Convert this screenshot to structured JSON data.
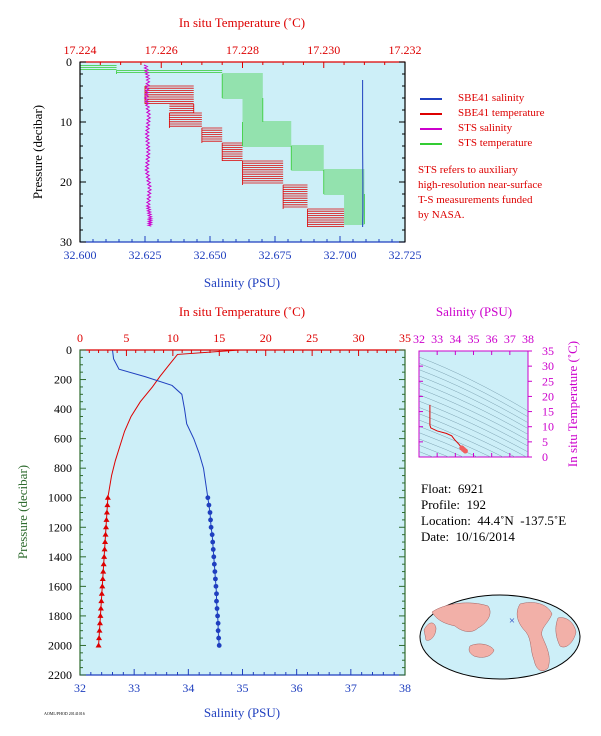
{
  "chart_data": [
    {
      "id": "near_surface",
      "type": "line",
      "xlabel_bottom": "Salinity (PSU)",
      "xlabel_top": "In situ Temperature (˚C)",
      "ylabel": "Pressure (decibar)",
      "x_bottom_range": [
        32.6,
        32.725
      ],
      "x_bottom_ticks": [
        "32.600",
        "32.625",
        "32.650",
        "32.675",
        "32.700",
        "32.725"
      ],
      "x_top_range": [
        17.224,
        17.232
      ],
      "x_top_ticks": [
        "17.224",
        "17.226",
        "17.228",
        "17.230",
        "17.232"
      ],
      "y_range": [
        0,
        30
      ],
      "y_ticks": [
        "0",
        "10",
        "20",
        "30"
      ],
      "legend": [
        {
          "label": "SBE41 salinity",
          "color": "#1f3fbf"
        },
        {
          "label": "SBE41 temperature",
          "color": "#dd0000"
        },
        {
          "label": "STS salinity",
          "color": "#cc00cc"
        },
        {
          "label": "STS temperature",
          "color": "#33cc33"
        }
      ],
      "sbe41_salinity": {
        "x": [
          32.7087,
          32.7087,
          32.7087,
          32.7088,
          32.7088,
          32.7087
        ],
        "y": [
          3,
          8,
          14,
          20,
          25,
          27.5
        ]
      },
      "sts_salinity": {
        "x": [
          32.6252,
          32.6262,
          32.6255,
          32.6265,
          32.6258,
          32.6263,
          32.6257,
          32.6268,
          32.6262,
          32.627,
          32.6268
        ],
        "y": [
          0.5,
          3,
          6,
          9,
          12,
          15,
          18,
          21,
          24,
          26,
          27.5
        ]
      },
      "sbe41_temperature": {
        "x": [
          17.2256,
          17.2268,
          17.2262,
          17.227,
          17.2275,
          17.228,
          17.229,
          17.2296,
          17.2305
        ],
        "y": [
          4,
          7,
          8.5,
          11,
          13.5,
          16.5,
          20.5,
          24.5,
          27.5
        ]
      },
      "sts_temperature": {
        "x": [
          17.224,
          17.2249,
          17.2275,
          17.2285,
          17.228,
          17.2292,
          17.23,
          17.231,
          17.2305
        ],
        "y": [
          0.6,
          1.4,
          2,
          6,
          10,
          14,
          18,
          22,
          27
        ]
      },
      "note": [
        "STS refers to auxiliary",
        "high-resolution near-surface",
        "T-S measurements funded",
        "by NASA."
      ]
    },
    {
      "id": "full_profile",
      "type": "line",
      "xlabel_bottom": "Salinity (PSU)",
      "xlabel_top": "In situ Temperature (˚C)",
      "ylabel": "Pressure (decibar)",
      "x_bottom_range": [
        32,
        38
      ],
      "x_bottom_ticks": [
        "32",
        "33",
        "34",
        "35",
        "36",
        "37",
        "38"
      ],
      "x_top_range": [
        0,
        35
      ],
      "x_top_ticks": [
        "0",
        "5",
        "10",
        "15",
        "20",
        "25",
        "30",
        "35"
      ],
      "y_range": [
        0,
        2200
      ],
      "y_ticks": [
        "0",
        "200",
        "400",
        "600",
        "800",
        "1000",
        "1200",
        "1400",
        "1600",
        "1800",
        "2000",
        "2200"
      ],
      "salinity": {
        "x": [
          32.6,
          32.62,
          32.72,
          33.2,
          33.7,
          33.88,
          33.93,
          33.97,
          34.1,
          34.2,
          34.28,
          34.36
        ],
        "y": [
          0,
          60,
          130,
          180,
          240,
          300,
          400,
          500,
          600,
          700,
          800,
          1000
        ]
      },
      "temperature": {
        "x": [
          17.2,
          10.5,
          9.6,
          8.6,
          7.8,
          6.5,
          5.5,
          4.8,
          4.3,
          3.8,
          3.4,
          3.0
        ],
        "y": [
          0,
          30,
          100,
          180,
          250,
          350,
          450,
          550,
          650,
          750,
          850,
          1000
        ]
      },
      "salinity_points": {
        "x": [
          34.36,
          34.38,
          34.4,
          34.41,
          34.42,
          34.44,
          34.45,
          34.46,
          34.47,
          34.48,
          34.49,
          34.5,
          34.51,
          34.52,
          34.52,
          34.53,
          34.54,
          34.55,
          34.55,
          34.56,
          34.57
        ],
        "y": [
          1000,
          1050,
          1100,
          1150,
          1200,
          1250,
          1300,
          1350,
          1400,
          1450,
          1500,
          1550,
          1600,
          1650,
          1700,
          1750,
          1800,
          1850,
          1900,
          1950,
          2000
        ]
      },
      "temperature_points": {
        "x": [
          3.0,
          2.95,
          2.9,
          2.85,
          2.8,
          2.75,
          2.7,
          2.65,
          2.6,
          2.55,
          2.5,
          2.45,
          2.4,
          2.35,
          2.3,
          2.25,
          2.2,
          2.15,
          2.1,
          2.05,
          2.0
        ],
        "y": [
          1000,
          1050,
          1100,
          1150,
          1200,
          1250,
          1300,
          1350,
          1400,
          1450,
          1500,
          1550,
          1600,
          1650,
          1700,
          1750,
          1800,
          1850,
          1900,
          1950,
          2000
        ]
      }
    },
    {
      "id": "ts_diagram",
      "type": "scatter",
      "xlabel": "Salinity (PSU)",
      "ylabel": "In situ Temperature (˚C)",
      "x_range": [
        32,
        38
      ],
      "x_ticks": [
        "32",
        "33",
        "34",
        "35",
        "36",
        "37",
        "38"
      ],
      "y_range": [
        0,
        35
      ],
      "y_ticks": [
        "0",
        "5",
        "10",
        "15",
        "20",
        "25",
        "30",
        "35"
      ],
      "ts_curve": {
        "x": [
          32.6,
          32.6,
          32.65,
          33.0,
          33.5,
          33.8,
          33.95,
          34.2,
          34.36,
          34.45,
          34.55
        ],
        "y": [
          17.2,
          10.5,
          9.6,
          8.6,
          7.8,
          7.0,
          5.8,
          4.2,
          3.0,
          2.5,
          2.0
        ]
      }
    }
  ],
  "float_info": {
    "float": "Float:  6921",
    "profile": "Profile:  192",
    "location": "Location:  44.4˚N  -137.5˚E",
    "date": "Date:  10/16/2014"
  },
  "map": {
    "marker": "×",
    "marker_color": "#1f3fbf"
  },
  "footer_text": "AOML/PHOD 20141016",
  "colors": {
    "plot_bg": "#cdeff8",
    "salinity": "#1f3fbf",
    "temperature": "#dd0000",
    "sts_salinity": "#cc00cc",
    "sts_temperature": "#33cc33",
    "axis_left": "#2e6b2e",
    "ts_axis": "#cc00cc"
  }
}
